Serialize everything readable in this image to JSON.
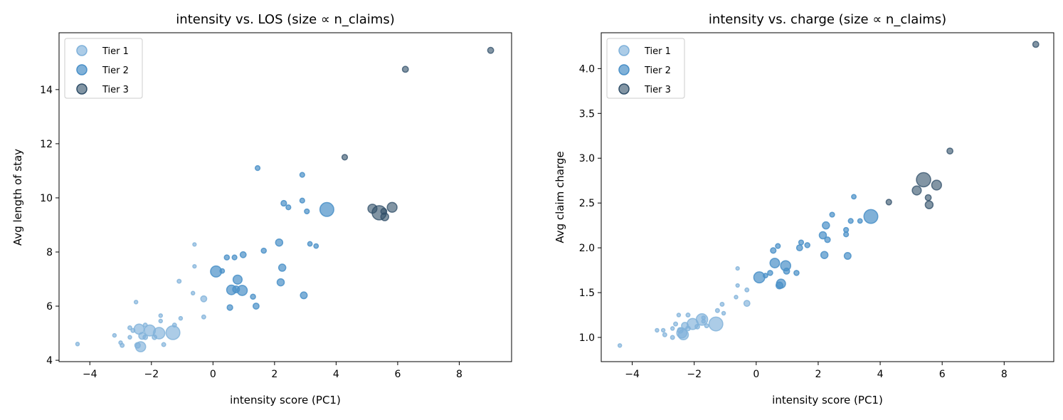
{
  "chart_data": [
    {
      "type": "scatter",
      "title": "intensity vs. LOS (size ∝ n_claims)",
      "xlabel": "intensity score (PC1)",
      "ylabel": "Avg length of stay",
      "xlim": [
        -5,
        9.7
      ],
      "ylim": [
        3.95,
        16.1
      ],
      "xticks": [
        -4,
        -2,
        0,
        2,
        4,
        6,
        8
      ],
      "yticks": [
        4,
        6,
        8,
        10,
        12,
        14
      ],
      "grid": false,
      "legend": "top-left",
      "y_field": "los"
    },
    {
      "type": "scatter",
      "title": "intensity vs. charge (size ∝ n_claims)",
      "xlabel": "intensity score (PC1)",
      "ylabel": "Avg claim charge",
      "xlim": [
        -5,
        9.6
      ],
      "ylim": [
        0.73,
        4.4
      ],
      "xticks": [
        -4,
        -2,
        0,
        2,
        4,
        6,
        8
      ],
      "yticks": [
        1.0,
        1.5,
        2.0,
        2.5,
        3.0,
        3.5,
        4.0
      ],
      "grid": false,
      "legend": "top-left",
      "y_field": "charge"
    }
  ],
  "series": [
    {
      "name": "Tier 1",
      "color": "#7fb1da",
      "opacity": 0.65,
      "points": [
        {
          "x": -4.4,
          "los": 4.6,
          "charge": 0.91,
          "n": 25
        },
        {
          "x": -3.2,
          "los": 4.92,
          "charge": 1.08,
          "n": 25
        },
        {
          "x": -3.0,
          "los": 4.65,
          "charge": 1.08,
          "n": 25
        },
        {
          "x": -2.95,
          "los": 4.55,
          "charge": 1.03,
          "n": 30
        },
        {
          "x": -2.7,
          "los": 5.2,
          "charge": 1.0,
          "n": 30
        },
        {
          "x": -2.7,
          "los": 4.85,
          "charge": 1.1,
          "n": 25
        },
        {
          "x": -2.6,
          "los": 5.1,
          "charge": 1.15,
          "n": 30
        },
        {
          "x": -2.5,
          "los": 6.15,
          "charge": 1.25,
          "n": 25
        },
        {
          "x": -2.45,
          "los": 4.55,
          "charge": 1.08,
          "n": 60
        },
        {
          "x": -2.4,
          "los": 5.15,
          "charge": 1.05,
          "n": 200
        },
        {
          "x": -2.35,
          "los": 4.5,
          "charge": 1.03,
          "n": 200
        },
        {
          "x": -2.3,
          "los": 4.9,
          "charge": 1.13,
          "n": 90
        },
        {
          "x": -2.2,
          "los": 5.3,
          "charge": 1.25,
          "n": 30
        },
        {
          "x": -2.2,
          "los": 4.85,
          "charge": 1.1,
          "n": 40
        },
        {
          "x": -2.05,
          "los": 5.1,
          "charge": 1.15,
          "n": 240
        },
        {
          "x": -1.9,
          "los": 4.85,
          "charge": 1.12,
          "n": 40
        },
        {
          "x": -1.75,
          "los": 5.0,
          "charge": 1.2,
          "n": 260
        },
        {
          "x": -1.7,
          "los": 5.65,
          "charge": 1.22,
          "n": 25
        },
        {
          "x": -1.7,
          "los": 5.45,
          "charge": 1.18,
          "n": 25
        },
        {
          "x": -1.6,
          "los": 4.58,
          "charge": 1.13,
          "n": 30
        },
        {
          "x": -1.3,
          "los": 5.02,
          "charge": 1.15,
          "n": 380
        },
        {
          "x": -1.25,
          "los": 5.3,
          "charge": 1.3,
          "n": 30
        },
        {
          "x": -1.1,
          "los": 6.92,
          "charge": 1.37,
          "n": 30
        },
        {
          "x": -1.05,
          "los": 5.55,
          "charge": 1.27,
          "n": 25
        },
        {
          "x": -0.65,
          "los": 6.48,
          "charge": 1.45,
          "n": 25
        },
        {
          "x": -0.6,
          "los": 8.28,
          "charge": 1.77,
          "n": 20
        },
        {
          "x": -0.6,
          "los": 7.47,
          "charge": 1.58,
          "n": 20
        },
        {
          "x": -0.3,
          "los": 6.27,
          "charge": 1.38,
          "n": 70
        },
        {
          "x": -0.3,
          "los": 5.6,
          "charge": 1.53,
          "n": 30
        }
      ]
    },
    {
      "name": "Tier 2",
      "color": "#4a90c8",
      "opacity": 0.7,
      "points": [
        {
          "x": 0.1,
          "los": 7.28,
          "charge": 1.67,
          "n": 240
        },
        {
          "x": 0.3,
          "los": 7.3,
          "charge": 1.69,
          "n": 40
        },
        {
          "x": 0.45,
          "los": 7.8,
          "charge": 1.72,
          "n": 50
        },
        {
          "x": 0.55,
          "los": 5.95,
          "charge": 1.97,
          "n": 60
        },
        {
          "x": 0.6,
          "los": 6.6,
          "charge": 1.83,
          "n": 180
        },
        {
          "x": 0.7,
          "los": 7.8,
          "charge": 2.02,
          "n": 45
        },
        {
          "x": 0.8,
          "los": 6.98,
          "charge": 1.6,
          "n": 160
        },
        {
          "x": 0.75,
          "los": 6.62,
          "charge": 1.58,
          "n": 90
        },
        {
          "x": 0.95,
          "los": 6.58,
          "charge": 1.8,
          "n": 200
        },
        {
          "x": 0.98,
          "los": 7.9,
          "charge": 1.74,
          "n": 70
        },
        {
          "x": 1.3,
          "los": 6.35,
          "charge": 1.72,
          "n": 50
        },
        {
          "x": 1.4,
          "los": 6.0,
          "charge": 2.0,
          "n": 70
        },
        {
          "x": 1.45,
          "los": 11.1,
          "charge": 2.06,
          "n": 45
        },
        {
          "x": 1.65,
          "los": 8.05,
          "charge": 2.03,
          "n": 50
        },
        {
          "x": 2.15,
          "los": 8.35,
          "charge": 2.14,
          "n": 100
        },
        {
          "x": 2.2,
          "los": 6.88,
          "charge": 1.92,
          "n": 100
        },
        {
          "x": 2.25,
          "los": 7.42,
          "charge": 2.25,
          "n": 100
        },
        {
          "x": 2.3,
          "los": 9.8,
          "charge": 2.09,
          "n": 60
        },
        {
          "x": 2.45,
          "los": 9.65,
          "charge": 2.37,
          "n": 45
        },
        {
          "x": 2.9,
          "los": 10.85,
          "charge": 2.2,
          "n": 45
        },
        {
          "x": 2.9,
          "los": 9.9,
          "charge": 2.15,
          "n": 45
        },
        {
          "x": 2.95,
          "los": 6.4,
          "charge": 1.91,
          "n": 90
        },
        {
          "x": 3.05,
          "los": 9.5,
          "charge": 2.3,
          "n": 45
        },
        {
          "x": 3.15,
          "los": 8.3,
          "charge": 2.57,
          "n": 40
        },
        {
          "x": 3.35,
          "los": 8.22,
          "charge": 2.3,
          "n": 40
        },
        {
          "x": 3.7,
          "los": 9.57,
          "charge": 2.35,
          "n": 380
        }
      ]
    },
    {
      "name": "Tier 3",
      "color": "#2f4e68",
      "opacity": 0.6,
      "points": [
        {
          "x": 4.28,
          "los": 11.5,
          "charge": 2.51,
          "n": 60
        },
        {
          "x": 5.18,
          "los": 9.6,
          "charge": 2.64,
          "n": 160
        },
        {
          "x": 5.4,
          "los": 9.45,
          "charge": 2.76,
          "n": 400
        },
        {
          "x": 5.55,
          "los": 9.5,
          "charge": 2.56,
          "n": 70
        },
        {
          "x": 5.58,
          "los": 9.3,
          "charge": 2.48,
          "n": 120
        },
        {
          "x": 5.82,
          "los": 9.65,
          "charge": 2.7,
          "n": 190
        },
        {
          "x": 6.25,
          "los": 14.75,
          "charge": 3.08,
          "n": 70
        },
        {
          "x": 9.02,
          "los": 15.45,
          "charge": 4.27,
          "n": 70
        }
      ]
    }
  ]
}
